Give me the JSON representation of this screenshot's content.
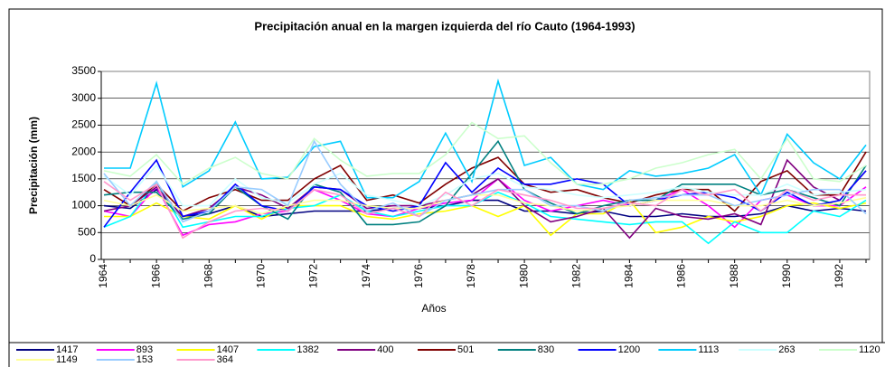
{
  "chart_data": {
    "type": "line",
    "title": "Precipitación anual en la margen izquierda del río Cauto (1964-1993)",
    "x_label": "Años",
    "y_label": "Precipitación (mm)",
    "categories": [
      "1964",
      null,
      "1966",
      null,
      "1968",
      null,
      "1970",
      null,
      "1972",
      null,
      "1974",
      null,
      "1976",
      null,
      "1978",
      null,
      "1980",
      null,
      "1982",
      null,
      "1984",
      null,
      "1986",
      null,
      "1988",
      null,
      "1990",
      null,
      "1992",
      null
    ],
    "ylim": [
      0,
      3500
    ],
    "yticks": [
      0,
      500,
      1000,
      1500,
      2000,
      2500,
      3000,
      3500
    ],
    "grid": true,
    "series": [
      {
        "name": "1417",
        "color": "#000080",
        "values": [
          1000,
          950,
          1300,
          800,
          850,
          1000,
          800,
          850,
          900,
          900,
          900,
          950,
          950,
          1000,
          1100,
          1100,
          900,
          900,
          850,
          900,
          800,
          800,
          850,
          800,
          800,
          850,
          1000,
          900,
          950,
          900
        ]
      },
      {
        "name": "893",
        "color": "#ff00ff",
        "values": [
          900,
          800,
          1350,
          450,
          650,
          700,
          850,
          900,
          1300,
          1100,
          850,
          800,
          950,
          1050,
          1100,
          1500,
          1100,
          900,
          1000,
          1100,
          1000,
          1100,
          1300,
          1000,
          600,
          1100,
          1200,
          1000,
          1000,
          1350
        ]
      },
      {
        "name": "1407",
        "color": "#ffff00",
        "values": [
          800,
          800,
          1050,
          800,
          750,
          1000,
          750,
          1000,
          1000,
          1000,
          800,
          750,
          850,
          900,
          1000,
          800,
          1000,
          450,
          850,
          850,
          1100,
          500,
          600,
          800,
          700,
          800,
          1000,
          1050,
          950,
          1050
        ]
      },
      {
        "name": "1382",
        "color": "#00ffff",
        "values": [
          600,
          800,
          1450,
          600,
          700,
          800,
          800,
          950,
          1000,
          1200,
          900,
          800,
          900,
          1000,
          1000,
          1250,
          1050,
          800,
          750,
          700,
          650,
          700,
          700,
          300,
          700,
          500,
          500,
          900,
          800,
          1100
        ]
      },
      {
        "name": "400",
        "color": "#800080",
        "values": [
          900,
          1000,
          1350,
          800,
          950,
          1350,
          1200,
          950,
          1350,
          1300,
          950,
          1000,
          1000,
          1100,
          1200,
          1500,
          1000,
          700,
          800,
          950,
          400,
          950,
          800,
          750,
          850,
          650,
          1850,
          1350,
          1100,
          1650
        ]
      },
      {
        "name": "501",
        "color": "#800000",
        "values": [
          1300,
          1000,
          1400,
          900,
          1150,
          1300,
          1100,
          1100,
          1500,
          1750,
          1100,
          1200,
          1050,
          1400,
          1700,
          1900,
          1400,
          1250,
          1300,
          1150,
          1050,
          1200,
          1300,
          1300,
          900,
          1450,
          1650,
          1200,
          1200,
          2000
        ]
      },
      {
        "name": "830",
        "color": "#008080",
        "values": [
          1200,
          1250,
          1250,
          750,
          850,
          1350,
          1000,
          750,
          1400,
          1250,
          650,
          650,
          700,
          1000,
          1600,
          2200,
          1300,
          1050,
          850,
          1000,
          1100,
          1100,
          1400,
          1400,
          1400,
          1200,
          1300,
          1150,
          1000,
          1750
        ]
      },
      {
        "name": "1200",
        "color": "#0000ff",
        "values": [
          600,
          1250,
          1850,
          800,
          900,
          1400,
          1000,
          900,
          1350,
          1300,
          1000,
          900,
          1000,
          1800,
          1250,
          1700,
          1400,
          1400,
          1500,
          1400,
          1000,
          1100,
          1200,
          1250,
          1150,
          900,
          1250,
          1000,
          1100,
          1650
        ]
      },
      {
        "name": "1113",
        "color": "#00ccff",
        "values": [
          1700,
          1700,
          3280,
          1350,
          1650,
          2560,
          1500,
          1530,
          2100,
          2200,
          1150,
          1150,
          1450,
          2350,
          1450,
          3320,
          1750,
          1900,
          1400,
          1300,
          1650,
          1550,
          1600,
          1700,
          1950,
          1200,
          2330,
          1800,
          1500,
          2130
        ]
      },
      {
        "name": "263",
        "color": "#ccffff",
        "values": [
          1550,
          1200,
          1750,
          1000,
          1000,
          1500,
          1150,
          1050,
          1400,
          1600,
          1200,
          1100,
          1000,
          1200,
          1500,
          1600,
          1350,
          1300,
          1200,
          1150,
          1200,
          1250,
          1350,
          1250,
          1200,
          1200,
          1400,
          1200,
          1250,
          1300
        ]
      },
      {
        "name": "1120",
        "color": "#ccffcc",
        "values": [
          1650,
          1550,
          1950,
          1400,
          1700,
          1900,
          1600,
          1500,
          2250,
          1850,
          1550,
          1600,
          1600,
          1950,
          2550,
          2250,
          2300,
          1800,
          1400,
          1400,
          1500,
          1700,
          1800,
          1950,
          2050,
          1500,
          2250,
          1500,
          1450,
          1750
        ]
      },
      {
        "name": "1149",
        "color": "#ffff99",
        "values": [
          1100,
          1000,
          1200,
          900,
          950,
          1000,
          850,
          1000,
          1100,
          1100,
          1000,
          950,
          950,
          1100,
          1200,
          1200,
          1050,
          1000,
          900,
          950,
          1000,
          1100,
          1100,
          1100,
          1000,
          1000,
          1100,
          1000,
          1050,
          1150
        ]
      },
      {
        "name": "153",
        "color": "#99ccff",
        "values": [
          1600,
          1000,
          1450,
          700,
          900,
          1350,
          1300,
          1000,
          2200,
          1400,
          900,
          1050,
          800,
          1100,
          1200,
          1300,
          1300,
          1000,
          1000,
          900,
          1100,
          1150,
          1200,
          1200,
          1000,
          1100,
          1200,
          1300,
          1300,
          850
        ]
      },
      {
        "name": "364",
        "color": "#ff99cc",
        "values": [
          1450,
          1100,
          1400,
          400,
          700,
          900,
          950,
          900,
          1300,
          1200,
          850,
          950,
          800,
          1250,
          1000,
          1300,
          1200,
          1100,
          950,
          950,
          1050,
          1000,
          1300,
          1200,
          1300,
          900,
          1300,
          1100,
          1200,
          1200
        ]
      }
    ]
  }
}
